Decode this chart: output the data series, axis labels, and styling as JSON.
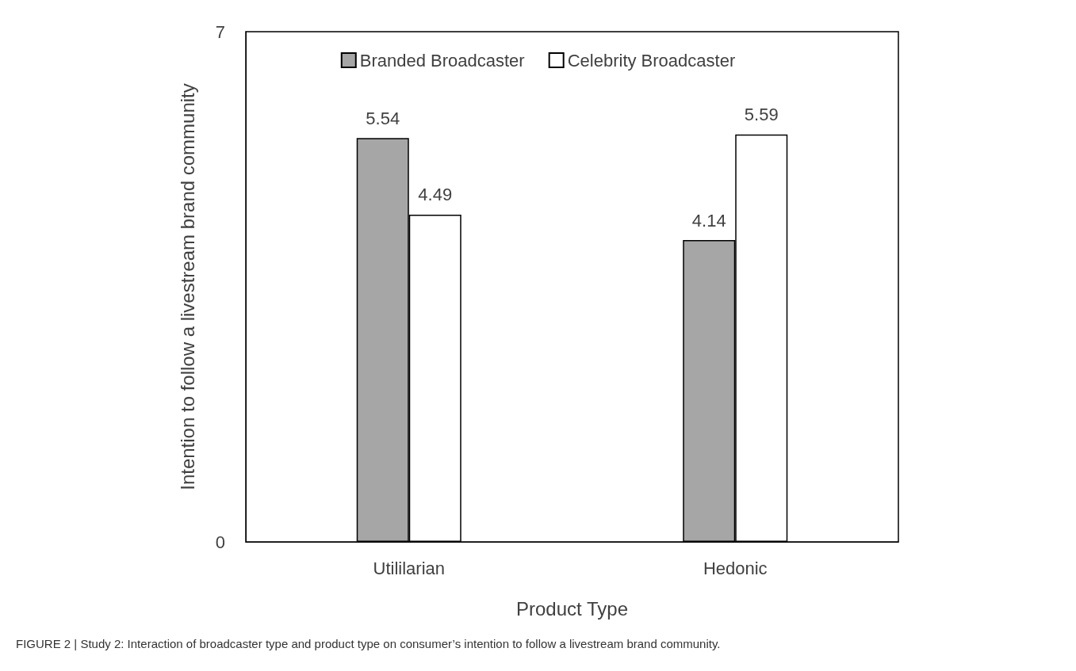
{
  "chart_data": {
    "type": "bar",
    "xlabel": "Product Type",
    "ylabel": "Intention to follow a livestream brand community",
    "categories": [
      "Utililarian",
      "Hedonic"
    ],
    "series": [
      {
        "name": "Branded Broadcaster",
        "color": "#a6a6a6",
        "values": [
          5.54,
          4.14
        ]
      },
      {
        "name": "Celebrity Broadcaster",
        "color": "#ffffff",
        "values": [
          4.49,
          5.59
        ]
      }
    ],
    "ylim": [
      0,
      7
    ],
    "yticks": [
      0,
      7
    ],
    "grid": false,
    "legend": "top",
    "data_labels": true,
    "annotations": [
      "FIGURE 2 | Study 2: Interaction of broadcaster type and product type on consumer’s intention to follow a livestream brand community."
    ]
  }
}
